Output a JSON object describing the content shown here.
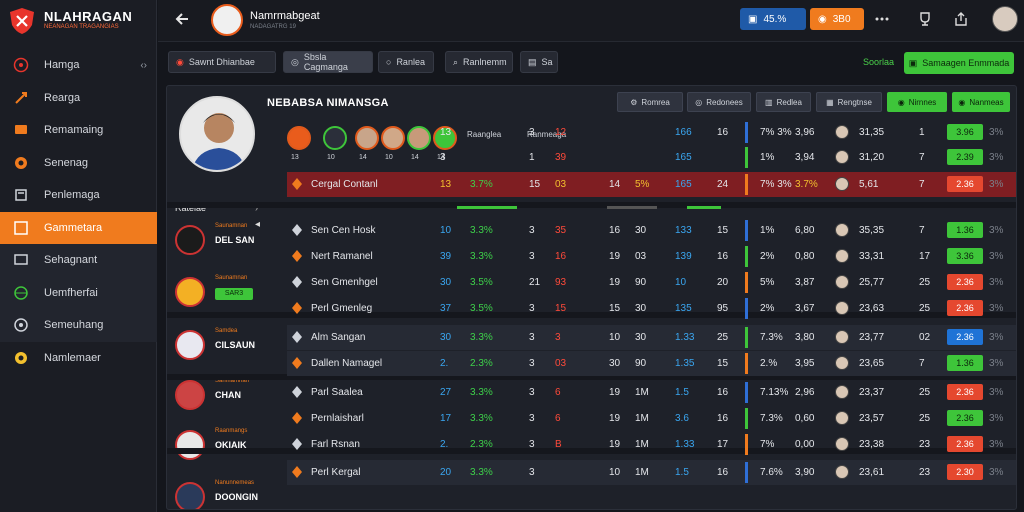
{
  "brand": {
    "name": "NLAHRAGAN",
    "tagline": "NEANAGAN TRAGANGIAS"
  },
  "nav": [
    {
      "label": "Hamga",
      "icon": "soccer-ball-icon",
      "chev": "‹›"
    },
    {
      "label": "Rearga",
      "icon": "rocket-icon"
    },
    {
      "label": "Remamaing",
      "icon": "tv-icon"
    },
    {
      "label": "Senenag",
      "icon": "target-icon"
    },
    {
      "label": "Penlemaga",
      "icon": "gamepad-icon"
    },
    {
      "label": "Gammetara",
      "icon": "card-icon"
    },
    {
      "label": "Sehagnant",
      "icon": "monitor-icon"
    },
    {
      "label": "Uemfherfai",
      "icon": "globe-icon"
    },
    {
      "label": "Semeuhang",
      "icon": "settings-icon"
    },
    {
      "label": "Namlemaer",
      "icon": "gear-icon"
    }
  ],
  "topbar": {
    "title": "Namrmabgeat",
    "subtitle": "NADAGATRG 19",
    "balance": "45.%",
    "coins": "3B0"
  },
  "toolbar": {
    "buttons": [
      "Sawnt Dhianbae",
      "Sbsla Cagmanga",
      "Ranlea",
      "Ranlnemm",
      "Sa"
    ],
    "link": "Soorlaa",
    "action": "Samaagen Enmmada"
  },
  "panel": {
    "team_name": "NEBABSA NIMANSGA",
    "profile_label": "Rateiae",
    "header_buttons": [
      "Romrea",
      "Redonees",
      "Redlea",
      "Rengtnse",
      "Nirnnes",
      "Nanmeas"
    ],
    "head_names": [
      "13",
      "10",
      "14",
      "10",
      "14",
      "14"
    ],
    "summary_labels": [
      "Raanglea",
      "Ranmeaga"
    ],
    "left_blocks": [
      {
        "t": "Saunamnan",
        "b": "DEL SAN",
        "g": ""
      },
      {
        "t": "Saunamnan",
        "b": "",
        "g": "SAR3"
      },
      {
        "t": "Samdea",
        "b": "CILSAUN",
        "g": ""
      },
      {
        "t": "Sanmamnan",
        "b": "CHAN",
        "g": ""
      },
      {
        "t": "Raanmangs",
        "b": "OKIAIK",
        "g": ""
      },
      {
        "t": "Nanunnemeas",
        "b": "DOONGIN",
        "g": ""
      }
    ]
  },
  "rows": [
    {
      "name": "",
      "c1": "13",
      "c2": "",
      "c3": "3",
      "c4": "12",
      "c5": "166",
      "c6": "16",
      "c7": "7% 3%",
      "c8": "3,96",
      "c9": "31,35",
      "c10": "1",
      "c11": "3.96",
      "c12": "3%",
      "type": "plain"
    },
    {
      "name": "",
      "c1": "3",
      "c2": "",
      "c3": "1",
      "c4": "39",
      "c5": "165",
      "c6": "",
      "c7": "1%",
      "c8": "3,94",
      "c9": "31,20",
      "c10": "7",
      "c11": "2.39",
      "c12": "3%",
      "type": "plain"
    },
    {
      "name": "Cergal Contanl",
      "c1": "13",
      "c2": "3.7%",
      "c3": "15",
      "c4": "03",
      "c5": "165",
      "c6": "24",
      "c7": "7% 3%",
      "c8": "3.7%",
      "c9": "5,61",
      "c10": "7",
      "c11": "2.36",
      "c12": "3%",
      "pct": "5%",
      "n2": "14",
      "type": "hl"
    },
    {
      "name": "Sen Cen Hosk",
      "c1": "10",
      "c2": "3.3%",
      "c3": "3",
      "c4": "35",
      "c5": "133",
      "c6": "15",
      "c7": "1%",
      "c8": "6,80",
      "c9": "35,35",
      "c10": "7",
      "c11": "1.36",
      "c12": "3%",
      "n2": "16",
      "n3": "30",
      "type": "plain"
    },
    {
      "name": "Nert Ramanel",
      "c1": "39",
      "c2": "3.3%",
      "c3": "3",
      "c4": "16",
      "c5": "139",
      "c6": "16",
      "c7": "2%",
      "c8": "0,80",
      "c9": "33,31",
      "c10": "17",
      "c11": "3.36",
      "c12": "3%",
      "n2": "19",
      "n3": "03",
      "type": "plain"
    },
    {
      "name": "Sen Gmenhgel",
      "c1": "30",
      "c2": "3.5%",
      "c3": "21",
      "c4": "93",
      "c5": "10",
      "c6": "20",
      "c7": "5%",
      "c8": "3,87",
      "c9": "25,77",
      "c10": "25",
      "c11": "2.36",
      "c12": "3%",
      "n2": "19",
      "n3": "90",
      "type": "plain"
    },
    {
      "name": "Perl Gmenleg",
      "c1": "37",
      "c2": "3.5%",
      "c3": "3",
      "c4": "15",
      "c5": "135",
      "c6": "95",
      "c7": "2%",
      "c8": "3,67",
      "c9": "23,63",
      "c10": "25",
      "c11": "2.36",
      "c12": "3%",
      "n2": "15",
      "n3": "30",
      "type": "plain"
    },
    {
      "name": "Alm Sangan",
      "c1": "30",
      "c2": "3.3%",
      "c3": "3",
      "c4": "3",
      "c5": "1.33",
      "c6": "25",
      "c7": "7.3%",
      "c8": "3,80",
      "c9": "23,77",
      "c10": "02",
      "c11": "2.36",
      "c12": "3%",
      "n2": "10",
      "n3": "30",
      "type": "sec"
    },
    {
      "name": "Dallen Namagel",
      "c1": "2.",
      "c2": "2.3%",
      "c3": "3",
      "c4": "03",
      "c5": "1.35",
      "c6": "15",
      "c7": "2.%",
      "c8": "3,95",
      "c9": "23,65",
      "c10": "7",
      "c11": "1.36",
      "c12": "3%",
      "n2": "30",
      "n3": "90",
      "type": "sec"
    },
    {
      "name": "Parl Saalea",
      "c1": "27",
      "c2": "3.3%",
      "c3": "3",
      "c4": "6",
      "c5": "1.5",
      "c6": "16",
      "c7": "7.13%",
      "c8": "2,96",
      "c9": "23,37",
      "c10": "25",
      "c11": "2.36",
      "c12": "3%",
      "n2": "19",
      "n3": "1M",
      "type": "plain"
    },
    {
      "name": "Pernlaisharl",
      "c1": "17",
      "c2": "3.3%",
      "c3": "3",
      "c4": "6",
      "c5": "3.6",
      "c6": "16",
      "c7": "7.3%",
      "c8": "0,60",
      "c9": "23,57",
      "c10": "25",
      "c11": "2.36",
      "c12": "3%",
      "n2": "19",
      "n3": "1M",
      "type": "plain"
    },
    {
      "name": "Farl Rsnan",
      "c1": "2.",
      "c2": "2.3%",
      "c3": "3",
      "c4": "B",
      "c5": "1.33",
      "c6": "17",
      "c7": "7%",
      "c8": "0,00",
      "c9": "23,38",
      "c10": "23",
      "c11": "2.36",
      "c12": "3%",
      "n2": "19",
      "n3": "1M",
      "type": "plain"
    },
    {
      "name": "Perl Kergal",
      "c1": "20",
      "c2": "3.3%",
      "c3": "3",
      "c4": "",
      "c5": "1.5",
      "c6": "16",
      "c7": "7.6%",
      "c8": "3,90",
      "c9": "23,61",
      "c10": "23",
      "c11": "2.30",
      "c12": "3%",
      "n2": "10",
      "n3": "1M",
      "type": "sec"
    }
  ]
}
